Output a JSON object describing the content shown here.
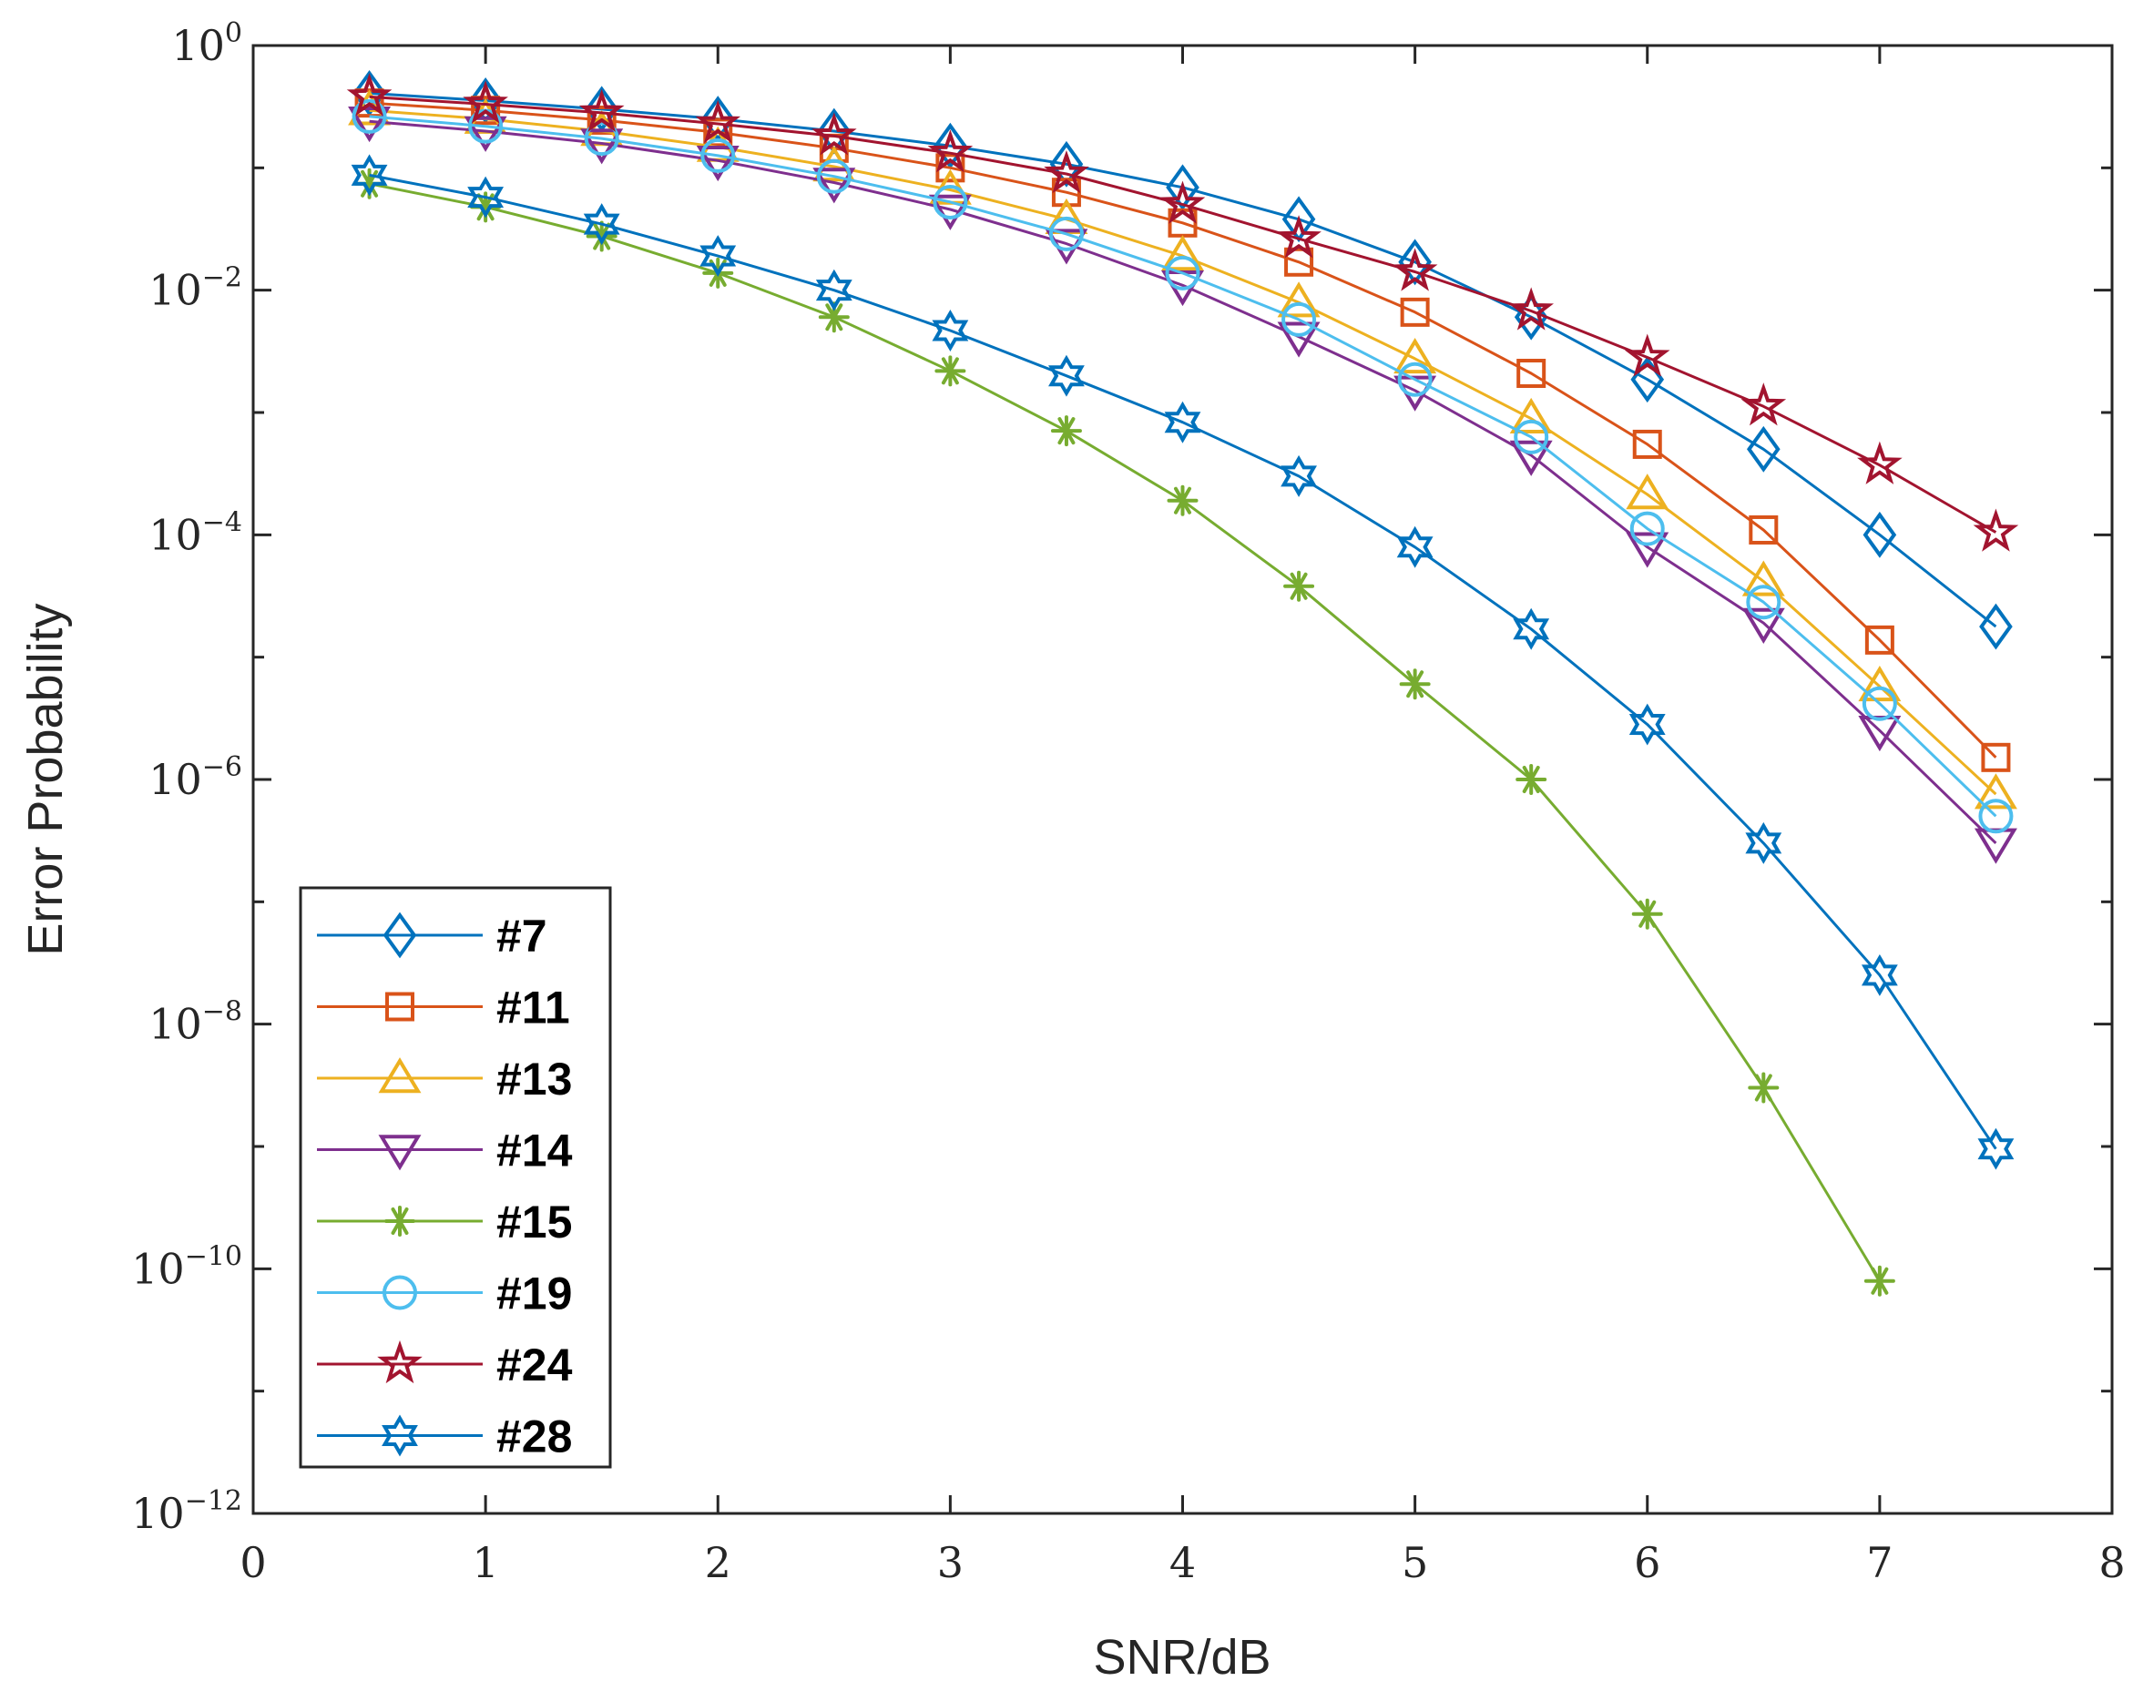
{
  "chart_data": {
    "type": "line",
    "title": "",
    "xlabel": "SNR/dB",
    "ylabel": "Error Probability",
    "xlim": [
      0,
      8
    ],
    "ylim_log10": [
      -12,
      0
    ],
    "yscale": "log",
    "grid": false,
    "legend_position": "bottom-left",
    "x_ticks": [
      {
        "value": 0,
        "label": "0"
      },
      {
        "value": 1,
        "label": "1"
      },
      {
        "value": 2,
        "label": "2"
      },
      {
        "value": 3,
        "label": "3"
      },
      {
        "value": 4,
        "label": "4"
      },
      {
        "value": 5,
        "label": "5"
      },
      {
        "value": 6,
        "label": "6"
      },
      {
        "value": 7,
        "label": "7"
      },
      {
        "value": 8,
        "label": "8"
      }
    ],
    "y_ticks": [
      {
        "exp": 0,
        "base": "10",
        "exponent": "0"
      },
      {
        "exp": -2,
        "base": "10",
        "exponent": "−2"
      },
      {
        "exp": -4,
        "base": "10",
        "exponent": "−4"
      },
      {
        "exp": -6,
        "base": "10",
        "exponent": "−6"
      },
      {
        "exp": -8,
        "base": "10",
        "exponent": "−8"
      },
      {
        "exp": -10,
        "base": "10",
        "exponent": "−10"
      },
      {
        "exp": -12,
        "base": "10",
        "exponent": "−12"
      }
    ],
    "x": [
      0.5,
      1,
      1.5,
      2,
      2.5,
      3,
      3.5,
      4,
      4.5,
      5,
      5.5,
      6,
      6.5,
      7,
      7.5
    ],
    "series": [
      {
        "name": "#7",
        "color": "#0072BD",
        "marker": "diamond",
        "log10_values": [
          -0.39,
          -0.45,
          -0.52,
          -0.6,
          -0.7,
          -0.82,
          -0.97,
          -1.16,
          -1.42,
          -1.77,
          -2.22,
          -2.73,
          -3.3,
          -4.0,
          -4.75
        ]
      },
      {
        "name": "#11",
        "color": "#D95319",
        "marker": "square",
        "log10_values": [
          -0.47,
          -0.53,
          -0.61,
          -0.71,
          -0.84,
          -1.0,
          -1.2,
          -1.45,
          -1.77,
          -2.18,
          -2.68,
          -3.26,
          -3.96,
          -4.86,
          -5.82
        ]
      },
      {
        "name": "#13",
        "color": "#EDB120",
        "marker": "triangle-up",
        "log10_values": [
          -0.53,
          -0.6,
          -0.7,
          -0.83,
          -0.99,
          -1.18,
          -1.42,
          -1.72,
          -2.1,
          -2.56,
          -3.05,
          -3.67,
          -4.38,
          -5.24,
          -6.12
        ]
      },
      {
        "name": "#14",
        "color": "#7E2F8E",
        "marker": "triangle-down",
        "log10_values": [
          -0.62,
          -0.7,
          -0.8,
          -0.94,
          -1.12,
          -1.34,
          -1.62,
          -1.96,
          -2.38,
          -2.82,
          -3.35,
          -4.1,
          -4.72,
          -5.6,
          -6.52
        ]
      },
      {
        "name": "#15",
        "color": "#77AC30",
        "marker": "asterisk",
        "log10_values": [
          -1.13,
          -1.32,
          -1.56,
          -1.86,
          -2.22,
          -2.66,
          -3.15,
          -3.72,
          -4.42,
          -5.22,
          -6.0,
          -7.1,
          -8.52,
          -10.1
        ]
      },
      {
        "name": "#19",
        "color": "#4DBEEE",
        "marker": "circle",
        "log10_values": [
          -0.58,
          -0.66,
          -0.76,
          -0.9,
          -1.07,
          -1.28,
          -1.54,
          -1.86,
          -2.24,
          -2.73,
          -3.2,
          -3.95,
          -4.55,
          -5.38,
          -6.3
        ]
      },
      {
        "name": "#24",
        "color": "#A2142F",
        "marker": "pentagram",
        "log10_values": [
          -0.42,
          -0.48,
          -0.55,
          -0.64,
          -0.74,
          -0.88,
          -1.05,
          -1.3,
          -1.58,
          -1.85,
          -2.17,
          -2.55,
          -2.95,
          -3.43,
          -3.98
        ]
      },
      {
        "name": "#28",
        "color": "#0072BD",
        "marker": "hexagram",
        "log10_values": [
          -1.06,
          -1.24,
          -1.46,
          -1.72,
          -2.0,
          -2.33,
          -2.7,
          -3.08,
          -3.52,
          -4.1,
          -4.77,
          -5.55,
          -6.52,
          -7.6,
          -9.02
        ]
      }
    ]
  }
}
